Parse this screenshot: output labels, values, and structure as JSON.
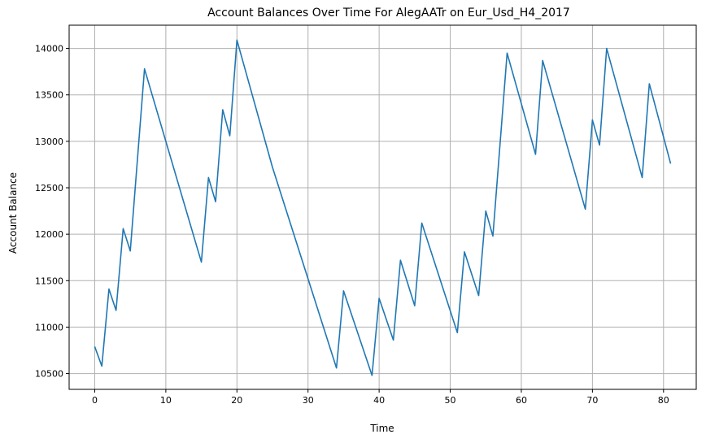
{
  "chart_data": {
    "type": "line",
    "title": "Account Balances Over Time For AlegAATr on Eur_Usd_H4_2017",
    "xlabel": "Time",
    "ylabel": "Account Balance",
    "xlim": [
      -3.6,
      84.6
    ],
    "ylim": [
      10330,
      14250
    ],
    "xticks": [
      0,
      10,
      20,
      30,
      40,
      50,
      60,
      70,
      80
    ],
    "yticks": [
      10500,
      11000,
      11500,
      12000,
      12500,
      13000,
      13500,
      14000
    ],
    "grid": true,
    "series": [
      {
        "color": "#1f77b4",
        "points": [
          [
            0,
            10790
          ],
          [
            1,
            10580
          ],
          [
            2,
            11410
          ],
          [
            3,
            11180
          ],
          [
            4,
            12060
          ],
          [
            5,
            11820
          ],
          [
            7,
            13780
          ],
          [
            15,
            11700
          ],
          [
            16,
            12610
          ],
          [
            17,
            12350
          ],
          [
            18,
            13340
          ],
          [
            19,
            13060
          ],
          [
            20,
            14090
          ],
          [
            25,
            12720
          ],
          [
            34,
            10560
          ],
          [
            35,
            11390
          ],
          [
            39,
            10480
          ],
          [
            40,
            11310
          ],
          [
            42,
            10860
          ],
          [
            43,
            11720
          ],
          [
            45,
            11230
          ],
          [
            46,
            12120
          ],
          [
            51,
            10940
          ],
          [
            52,
            11810
          ],
          [
            54,
            11340
          ],
          [
            55,
            12250
          ],
          [
            56,
            11980
          ],
          [
            58,
            13950
          ],
          [
            62,
            12860
          ],
          [
            63,
            13870
          ],
          [
            69,
            12270
          ],
          [
            70,
            13230
          ],
          [
            71,
            12960
          ],
          [
            72,
            14000
          ],
          [
            77,
            12610
          ],
          [
            78,
            13620
          ],
          [
            81,
            12760
          ]
        ]
      }
    ]
  }
}
